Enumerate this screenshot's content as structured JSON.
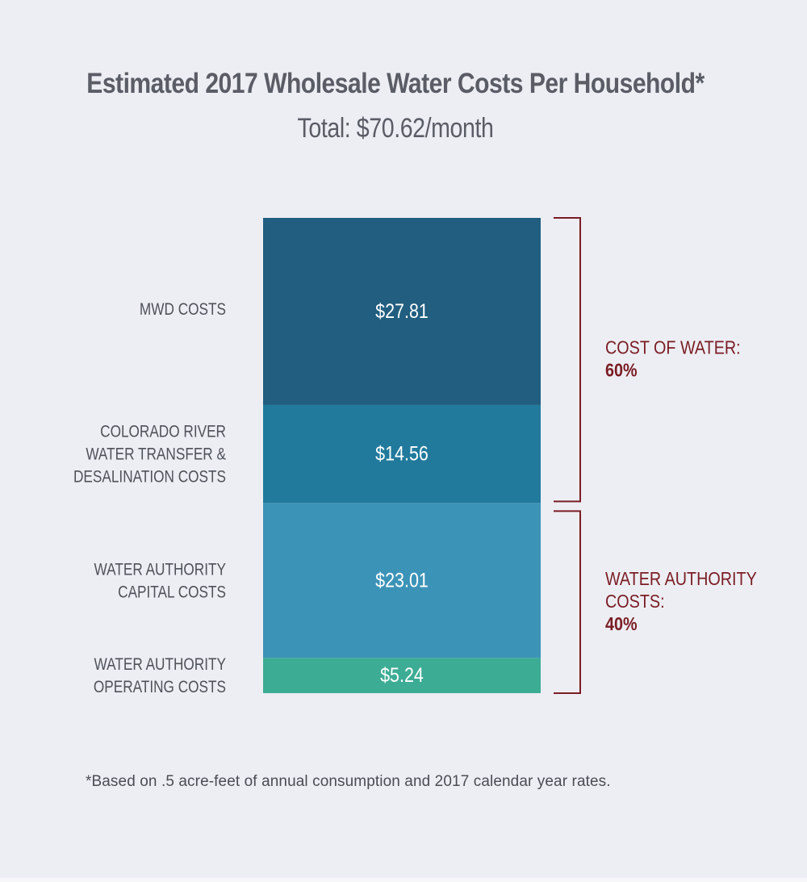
{
  "title": "Estimated 2017 Wholesale Water Costs Per Household*",
  "subtitle": "Total: $70.62/month",
  "footnote": "*Based on .5 acre-feet of annual consumption and 2017 calendar year rates.",
  "chart_data": {
    "type": "bar",
    "stacked": true,
    "categories": [
      "MWD COSTS",
      "COLORADO RIVER WATER TRANSFER & DESALINATION COSTS",
      "WATER AUTHORITY CAPITAL COSTS",
      "WATER AUTHORITY OPERATING COSTS"
    ],
    "segments": [
      {
        "label_lines": [
          "MWD COSTS"
        ],
        "value": 27.81,
        "value_label": "$27.81",
        "color": "#215e80"
      },
      {
        "label_lines": [
          "COLORADO RIVER",
          "WATER TRANSFER &",
          "DESALINATION COSTS"
        ],
        "value": 14.56,
        "value_label": "$14.56",
        "color": "#217a9c"
      },
      {
        "label_lines": [
          "WATER AUTHORITY",
          "CAPITAL COSTS"
        ],
        "value": 23.01,
        "value_label": "$23.01",
        "color": "#3c93b8"
      },
      {
        "label_lines": [
          "WATER AUTHORITY",
          "OPERATING COSTS"
        ],
        "value": 5.24,
        "value_label": "$5.24",
        "color": "#3dac95"
      }
    ],
    "brackets": [
      {
        "label_lines": [
          "COST OF WATER:"
        ],
        "percent": "60%",
        "from_segment": 0,
        "to_segment": 1
      },
      {
        "label_lines": [
          "WATER AUTHORITY",
          "COSTS:"
        ],
        "percent": "40%",
        "from_segment": 2,
        "to_segment": 3
      }
    ],
    "total": 70.62,
    "colors": {
      "category_text": "#4f525a",
      "value_text": "#ffffff",
      "bracket": "#7a1c24"
    }
  }
}
